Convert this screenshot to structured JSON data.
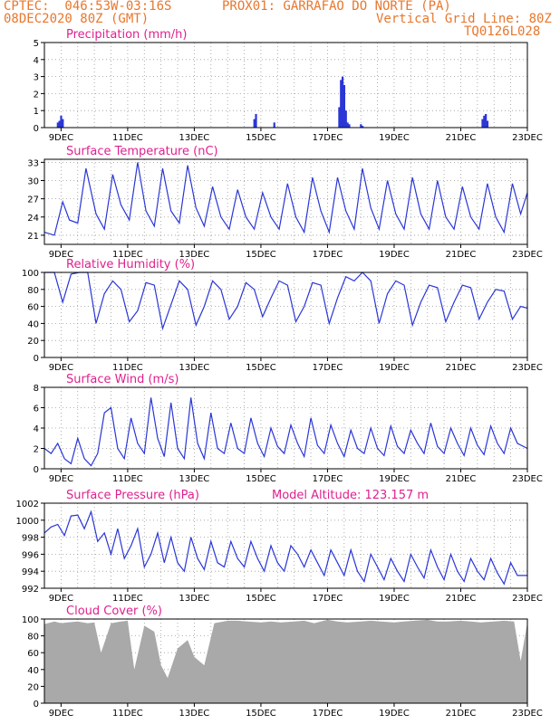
{
  "header": {
    "line1_left": "CPTEC:  046:53W-03:16S",
    "line1_right": "PROX01: GARRAFAO DO NORTE (PA)",
    "line2_left": "08DEC2020 80Z (GMT)",
    "line2_right": "Vertical Grid Line: 80Z",
    "line3_right": "TQ0126L028"
  },
  "x_axis": {
    "labels": [
      "9DEC",
      "11DEC",
      "13DEC",
      "15DEC",
      "17DEC",
      "19DEC",
      "21DEC",
      "23DEC"
    ],
    "label_days": [
      1,
      3,
      5,
      7,
      9,
      11,
      13,
      15
    ],
    "range_days": [
      0.5,
      15
    ]
  },
  "colors": {
    "line": "#2a36d6",
    "bar": "#2a36d6",
    "cloud": "#a9a9a9",
    "title": "#e0208e",
    "header": "#e8772e"
  },
  "chart_data": [
    {
      "type": "bar",
      "title": "Precipitation (mm/h)",
      "ylim": [
        0,
        5
      ],
      "yticks": [
        "0",
        "1",
        "2",
        "3",
        "4",
        "5"
      ],
      "x_days": [
        0.9,
        0.95,
        1.0,
        1.05,
        6.8,
        6.85,
        7.4,
        9.35,
        9.4,
        9.45,
        9.5,
        9.55,
        9.6,
        9.65,
        10.0,
        10.05,
        13.65,
        13.7,
        13.75,
        13.8
      ],
      "values": [
        0.3,
        0.4,
        0.7,
        0.5,
        0.5,
        0.8,
        0.3,
        1.2,
        2.8,
        3.0,
        2.5,
        1.0,
        0.3,
        0.2,
        0.2,
        0.1,
        0.5,
        0.7,
        0.8,
        0.4
      ]
    },
    {
      "type": "line",
      "title": "Surface Temperature (nC)",
      "ylim": [
        19.5,
        33.5
      ],
      "yticks": [
        "21",
        "24",
        "27",
        "30",
        "33"
      ],
      "x_days": [
        0.5,
        0.8,
        1.05,
        1.25,
        1.5,
        1.75,
        2.05,
        2.3,
        2.55,
        2.8,
        3.05,
        3.3,
        3.55,
        3.8,
        4.05,
        4.3,
        4.55,
        4.8,
        5.05,
        5.3,
        5.55,
        5.8,
        6.05,
        6.3,
        6.55,
        6.8,
        7.05,
        7.3,
        7.55,
        7.8,
        8.05,
        8.3,
        8.55,
        8.8,
        9.05,
        9.3,
        9.55,
        9.8,
        10.05,
        10.3,
        10.55,
        10.8,
        11.05,
        11.3,
        11.55,
        11.8,
        12.05,
        12.3,
        12.55,
        12.8,
        13.05,
        13.3,
        13.55,
        13.8,
        14.05,
        14.3,
        14.55,
        14.8,
        15.0
      ],
      "values": [
        21.5,
        21,
        26.5,
        23.5,
        23,
        32,
        24.5,
        22,
        31,
        26,
        23.5,
        33,
        25,
        22.5,
        32,
        25,
        23,
        32.5,
        25.5,
        22.5,
        29,
        24,
        22,
        28.5,
        24,
        22,
        28,
        24,
        22,
        29.5,
        24,
        21.5,
        30.5,
        25,
        21.5,
        30.5,
        25,
        22,
        32,
        25.5,
        22,
        30,
        24.5,
        22,
        30.5,
        24.5,
        22,
        30,
        24,
        22,
        29,
        24,
        22,
        29.5,
        24,
        21.5,
        29.5,
        24.5,
        28
      ]
    },
    {
      "type": "line",
      "title": "Relative Humidity (%)",
      "ylim": [
        0,
        100
      ],
      "yticks": [
        "0",
        "20",
        "40",
        "60",
        "80",
        "100"
      ],
      "x_days": [
        0.5,
        0.8,
        1.05,
        1.3,
        1.55,
        1.8,
        2.05,
        2.3,
        2.55,
        2.8,
        3.05,
        3.3,
        3.55,
        3.8,
        4.05,
        4.3,
        4.55,
        4.8,
        5.05,
        5.3,
        5.55,
        5.8,
        6.05,
        6.3,
        6.55,
        6.8,
        7.05,
        7.3,
        7.55,
        7.8,
        8.05,
        8.3,
        8.55,
        8.8,
        9.05,
        9.3,
        9.55,
        9.8,
        10.05,
        10.3,
        10.55,
        10.8,
        11.05,
        11.3,
        11.55,
        11.8,
        12.05,
        12.3,
        12.55,
        12.8,
        13.05,
        13.3,
        13.55,
        13.8,
        14.05,
        14.3,
        14.55,
        14.8,
        15.0
      ],
      "values": [
        100,
        100,
        65,
        98,
        100,
        100,
        40,
        75,
        90,
        80,
        42,
        55,
        88,
        85,
        34,
        62,
        90,
        80,
        38,
        60,
        90,
        80,
        45,
        60,
        88,
        80,
        48,
        70,
        90,
        85,
        42,
        60,
        88,
        85,
        40,
        70,
        95,
        90,
        100,
        90,
        40,
        75,
        90,
        85,
        38,
        65,
        85,
        82,
        42,
        65,
        85,
        82,
        45,
        65,
        80,
        78,
        45,
        60,
        58
      ]
    },
    {
      "type": "line",
      "title": "Surface Wind (m/s)",
      "ylim": [
        0,
        8
      ],
      "yticks": [
        "0",
        "2",
        "4",
        "6",
        "8"
      ],
      "x_days": [
        0.5,
        0.7,
        0.9,
        1.1,
        1.3,
        1.5,
        1.7,
        1.9,
        2.1,
        2.3,
        2.5,
        2.7,
        2.9,
        3.1,
        3.3,
        3.5,
        3.7,
        3.9,
        4.1,
        4.3,
        4.5,
        4.7,
        4.9,
        5.1,
        5.3,
        5.5,
        5.7,
        5.9,
        6.1,
        6.3,
        6.5,
        6.7,
        6.9,
        7.1,
        7.3,
        7.5,
        7.7,
        7.9,
        8.1,
        8.3,
        8.5,
        8.7,
        8.9,
        9.1,
        9.3,
        9.5,
        9.7,
        9.9,
        10.1,
        10.3,
        10.5,
        10.7,
        10.9,
        11.1,
        11.3,
        11.5,
        11.7,
        11.9,
        12.1,
        12.3,
        12.5,
        12.7,
        12.9,
        13.1,
        13.3,
        13.5,
        13.7,
        13.9,
        14.1,
        14.3,
        14.5,
        14.7,
        15.0
      ],
      "values": [
        2,
        1.5,
        2.5,
        1,
        0.5,
        3,
        1,
        0.3,
        1.5,
        5.5,
        6,
        2,
        1,
        5,
        2.5,
        1.5,
        7,
        3,
        1.2,
        6.5,
        2,
        1,
        7,
        2.5,
        1,
        5.5,
        2,
        1.5,
        4.5,
        2,
        1.5,
        5,
        2.5,
        1.2,
        4,
        2.2,
        1.5,
        4.3,
        2.5,
        1.2,
        5,
        2.3,
        1.5,
        4.3,
        2.5,
        1.2,
        3.8,
        2,
        1.5,
        4,
        2,
        1.3,
        4.2,
        2.2,
        1.5,
        3.8,
        2.5,
        1.5,
        4.5,
        2.2,
        1.5,
        4,
        2.5,
        1.3,
        4,
        2.3,
        1.4,
        4.2,
        2.5,
        1.5,
        4,
        2.5,
        2
      ]
    },
    {
      "type": "line",
      "title": "Surface Pressure (hPa)",
      "annotation": "Model Altitude: 123.157 m",
      "ylim": [
        992,
        1002
      ],
      "yticks": [
        "992",
        "994",
        "996",
        "998",
        "1000",
        "1002"
      ],
      "x_days": [
        0.5,
        0.7,
        0.9,
        1.1,
        1.3,
        1.5,
        1.7,
        1.9,
        2.1,
        2.3,
        2.5,
        2.7,
        2.9,
        3.1,
        3.3,
        3.5,
        3.7,
        3.9,
        4.1,
        4.3,
        4.5,
        4.7,
        4.9,
        5.1,
        5.3,
        5.5,
        5.7,
        5.9,
        6.1,
        6.3,
        6.5,
        6.7,
        6.9,
        7.1,
        7.3,
        7.5,
        7.7,
        7.9,
        8.1,
        8.3,
        8.5,
        8.7,
        8.9,
        9.1,
        9.3,
        9.5,
        9.7,
        9.9,
        10.1,
        10.3,
        10.5,
        10.7,
        10.9,
        11.1,
        11.3,
        11.5,
        11.7,
        11.9,
        12.1,
        12.3,
        12.5,
        12.7,
        12.9,
        13.1,
        13.3,
        13.5,
        13.7,
        13.9,
        14.1,
        14.3,
        14.5,
        14.7,
        15.0
      ],
      "values": [
        998.5,
        999.2,
        999.5,
        998.2,
        1000.5,
        1000.6,
        999,
        1001,
        997.5,
        998.5,
        996,
        999,
        995.5,
        997,
        999,
        994.5,
        996,
        998.5,
        995,
        998,
        995,
        994,
        998,
        995.5,
        994.2,
        997.5,
        995,
        994.5,
        997.5,
        995.5,
        994.5,
        997.5,
        995.5,
        994,
        997,
        995,
        994,
        997,
        996,
        994.5,
        996.5,
        995,
        993.5,
        996.5,
        995,
        993.5,
        996.5,
        994,
        992.8,
        996,
        994.5,
        993,
        995.5,
        994,
        992.8,
        996,
        994.5,
        993.2,
        996.5,
        994.5,
        993,
        996,
        994,
        992.8,
        995.5,
        994,
        993,
        995.5,
        993.8,
        992.5,
        995,
        993.5,
        993.5
      ]
    },
    {
      "type": "area",
      "title": "Cloud Cover (%)",
      "ylim": [
        0,
        100
      ],
      "yticks": [
        "0",
        "20",
        "40",
        "60",
        "80",
        "100"
      ],
      "x_days": [
        0.5,
        0.8,
        1.0,
        1.2,
        1.5,
        1.8,
        2.0,
        2.2,
        2.5,
        2.8,
        3.0,
        3.2,
        3.5,
        3.8,
        4.0,
        4.2,
        4.5,
        4.8,
        5.0,
        5.3,
        5.6,
        6.0,
        6.3,
        6.6,
        7.0,
        7.3,
        7.6,
        8.0,
        8.3,
        8.6,
        9.0,
        9.3,
        9.6,
        10.0,
        10.3,
        10.6,
        11.0,
        11.3,
        11.6,
        12.0,
        12.3,
        12.6,
        13.0,
        13.3,
        13.6,
        14.0,
        14.3,
        14.6,
        14.8,
        15.0
      ],
      "values": [
        94,
        97,
        95,
        96,
        97,
        95,
        96,
        60,
        95,
        97,
        98,
        40,
        92,
        85,
        45,
        30,
        65,
        75,
        55,
        45,
        95,
        98,
        98,
        97,
        96,
        97,
        96,
        97,
        98,
        95,
        99,
        97,
        96,
        97,
        98,
        97,
        96,
        97,
        98,
        99,
        97,
        97,
        98,
        97,
        96,
        97,
        98,
        97,
        50,
        96
      ]
    }
  ]
}
